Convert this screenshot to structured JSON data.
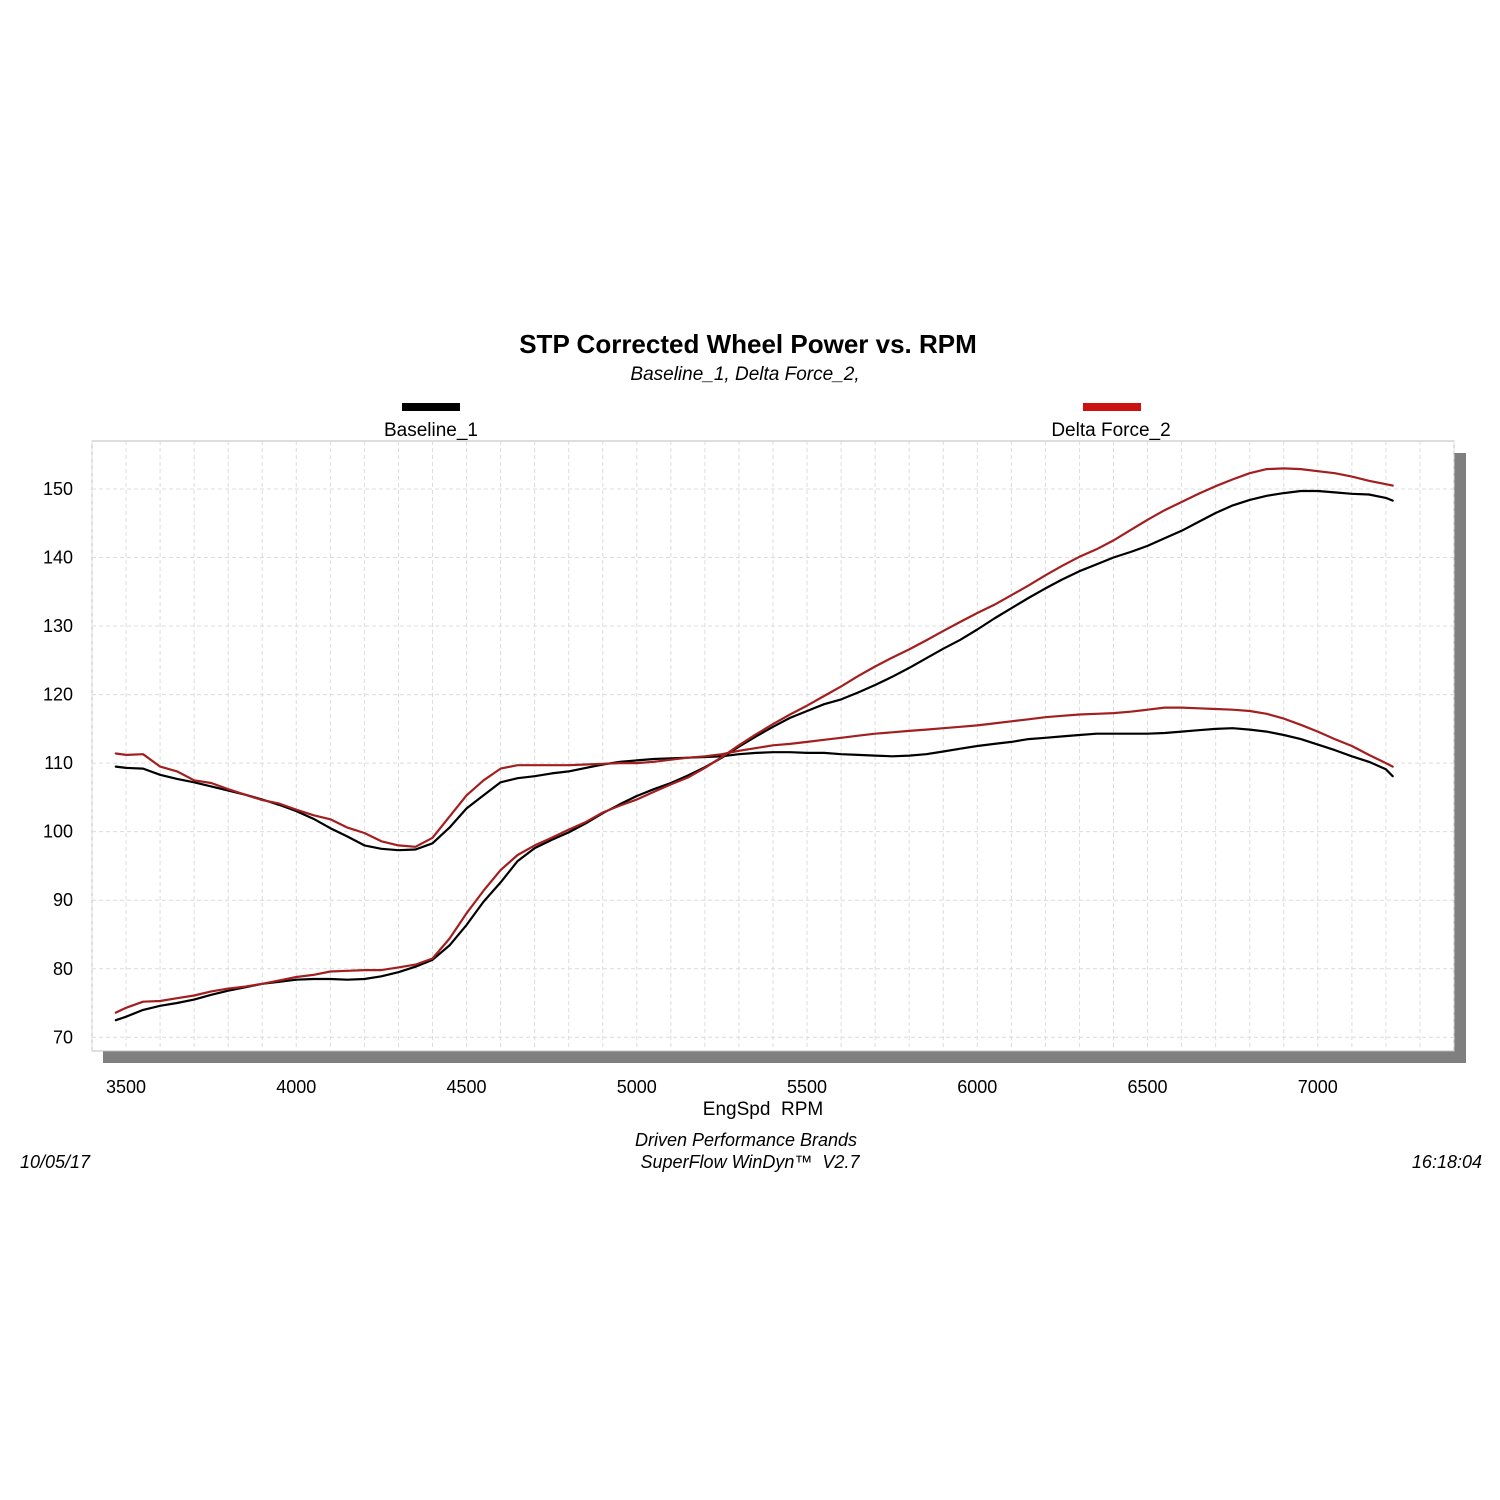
{
  "chart_data": {
    "type": "line",
    "title": "STP Corrected Wheel Power vs. RPM",
    "subtitle": "Baseline_1, Delta Force_2,",
    "xlabel": "EngSpd  RPM",
    "ylabel": "",
    "xlim": [
      3400,
      7400
    ],
    "ylim": [
      68,
      157
    ],
    "x_ticks": [
      3500,
      4000,
      4500,
      5000,
      5500,
      6000,
      6500,
      7000
    ],
    "y_ticks": [
      70,
      80,
      90,
      100,
      110,
      120,
      130,
      140,
      150
    ],
    "x_grid_step": 100,
    "grid": true,
    "legend_position": "top",
    "series": [
      {
        "name": "Baseline_1",
        "color": "#000000",
        "legend_color": "#000000",
        "curves": [
          {
            "x": [
              3470,
              3500,
              3550,
              3600,
              3650,
              3700,
              3750,
              3800,
              3850,
              3900,
              3950,
              4000,
              4050,
              4100,
              4150,
              4200,
              4250,
              4300,
              4350,
              4400,
              4450,
              4500,
              4550,
              4600,
              4650,
              4700,
              4750,
              4800,
              4850,
              4900,
              4950,
              5000,
              5050,
              5100,
              5150,
              5200,
              5250,
              5300,
              5350,
              5400,
              5450,
              5500,
              5550,
              5600,
              5650,
              5700,
              5750,
              5800,
              5850,
              5900,
              5950,
              6000,
              6050,
              6100,
              6150,
              6200,
              6250,
              6300,
              6350,
              6400,
              6450,
              6500,
              6550,
              6600,
              6650,
              6700,
              6750,
              6800,
              6850,
              6900,
              6950,
              7000,
              7050,
              7100,
              7150,
              7200,
              7220
            ],
            "y": [
              72.5,
              73.0,
              74.0,
              74.6,
              75.0,
              75.5,
              76.2,
              76.8,
              77.3,
              77.8,
              78.1,
              78.4,
              78.5,
              78.5,
              78.4,
              78.5,
              78.9,
              79.5,
              80.3,
              81.3,
              83.4,
              86.4,
              89.8,
              92.6,
              95.7,
              97.6,
              98.8,
              99.9,
              101.2,
              102.7,
              104.0,
              105.2,
              106.2,
              107.1,
              108.2,
              109.4,
              110.8,
              112.4,
              113.9,
              115.3,
              116.6,
              117.6,
              118.6,
              119.3,
              120.3,
              121.4,
              122.6,
              123.9,
              125.3,
              126.7,
              128.0,
              129.5,
              131.1,
              132.6,
              134.1,
              135.5,
              136.8,
              138.0,
              139.0,
              140.0,
              140.8,
              141.7,
              142.8,
              143.9,
              145.2,
              146.5,
              147.6,
              148.4,
              149.0,
              149.4,
              149.7,
              149.7,
              149.5,
              149.3,
              149.2,
              148.7,
              148.3
            ]
          },
          {
            "x": [
              3470,
              3500,
              3550,
              3600,
              3650,
              3700,
              3750,
              3800,
              3850,
              3900,
              3950,
              4000,
              4050,
              4100,
              4150,
              4200,
              4250,
              4300,
              4350,
              4400,
              4450,
              4500,
              4550,
              4600,
              4650,
              4700,
              4750,
              4800,
              4850,
              4900,
              4950,
              5000,
              5050,
              5100,
              5150,
              5200,
              5250,
              5300,
              5350,
              5400,
              5450,
              5500,
              5550,
              5600,
              5650,
              5700,
              5750,
              5800,
              5850,
              5900,
              5950,
              6000,
              6050,
              6100,
              6150,
              6200,
              6250,
              6300,
              6350,
              6400,
              6450,
              6500,
              6550,
              6600,
              6650,
              6700,
              6750,
              6800,
              6850,
              6900,
              6950,
              7000,
              7050,
              7100,
              7150,
              7200,
              7220
            ],
            "y": [
              109.5,
              109.3,
              109.2,
              108.3,
              107.7,
              107.2,
              106.6,
              106.0,
              105.4,
              104.7,
              103.9,
              103.0,
              101.9,
              100.5,
              99.3,
              98.0,
              97.5,
              97.3,
              97.4,
              98.3,
              100.6,
              103.4,
              105.3,
              107.2,
              107.8,
              108.1,
              108.5,
              108.8,
              109.3,
              109.8,
              110.2,
              110.4,
              110.6,
              110.7,
              110.8,
              110.9,
              111.0,
              111.3,
              111.5,
              111.6,
              111.6,
              111.5,
              111.5,
              111.3,
              111.2,
              111.1,
              111.0,
              111.1,
              111.3,
              111.7,
              112.1,
              112.5,
              112.8,
              113.1,
              113.5,
              113.7,
              113.9,
              114.1,
              114.3,
              114.3,
              114.3,
              114.3,
              114.4,
              114.6,
              114.8,
              115.0,
              115.1,
              114.9,
              114.6,
              114.1,
              113.5,
              112.7,
              111.9,
              111.0,
              110.2,
              109.1,
              108.1
            ]
          }
        ]
      },
      {
        "name": "Delta Force_2",
        "color": "#a31f1f",
        "legend_color": "#cc1111",
        "curves": [
          {
            "x": [
              3470,
              3500,
              3550,
              3600,
              3650,
              3700,
              3750,
              3800,
              3850,
              3900,
              3950,
              4000,
              4050,
              4100,
              4150,
              4200,
              4250,
              4300,
              4350,
              4400,
              4450,
              4500,
              4550,
              4600,
              4650,
              4700,
              4750,
              4800,
              4850,
              4900,
              4950,
              5000,
              5050,
              5100,
              5150,
              5200,
              5250,
              5300,
              5350,
              5400,
              5450,
              5500,
              5550,
              5600,
              5650,
              5700,
              5750,
              5800,
              5850,
              5900,
              5950,
              6000,
              6050,
              6100,
              6150,
              6200,
              6250,
              6300,
              6350,
              6400,
              6450,
              6500,
              6550,
              6600,
              6650,
              6700,
              6750,
              6800,
              6850,
              6900,
              6950,
              7000,
              7050,
              7100,
              7150,
              7200,
              7220
            ],
            "y": [
              73.6,
              74.3,
              75.2,
              75.3,
              75.7,
              76.1,
              76.7,
              77.1,
              77.4,
              77.8,
              78.3,
              78.8,
              79.1,
              79.6,
              79.7,
              79.8,
              79.8,
              80.2,
              80.6,
              81.5,
              84.4,
              88.1,
              91.4,
              94.4,
              96.6,
              98.0,
              99.1,
              100.3,
              101.4,
              102.8,
              103.8,
              104.7,
              105.8,
              106.9,
              107.9,
              109.3,
              110.9,
              112.6,
              114.2,
              115.7,
              117.1,
              118.4,
              119.8,
              121.2,
              122.7,
              124.1,
              125.4,
              126.6,
              127.9,
              129.3,
              130.6,
              131.9,
              133.1,
              134.5,
              135.9,
              137.4,
              138.8,
              140.1,
              141.2,
              142.5,
              144.0,
              145.5,
              146.9,
              148.1,
              149.3,
              150.4,
              151.4,
              152.3,
              152.9,
              153.0,
              152.9,
              152.6,
              152.3,
              151.8,
              151.2,
              150.7,
              150.5
            ]
          },
          {
            "x": [
              3470,
              3500,
              3550,
              3600,
              3650,
              3700,
              3750,
              3800,
              3850,
              3900,
              3950,
              4000,
              4050,
              4100,
              4150,
              4200,
              4250,
              4300,
              4350,
              4400,
              4450,
              4500,
              4550,
              4600,
              4650,
              4700,
              4750,
              4800,
              4850,
              4900,
              4950,
              5000,
              5050,
              5100,
              5150,
              5200,
              5250,
              5300,
              5350,
              5400,
              5450,
              5500,
              5550,
              5600,
              5650,
              5700,
              5750,
              5800,
              5850,
              5900,
              5950,
              6000,
              6050,
              6100,
              6150,
              6200,
              6250,
              6300,
              6350,
              6400,
              6450,
              6500,
              6550,
              6600,
              6650,
              6700,
              6750,
              6800,
              6850,
              6900,
              6950,
              7000,
              7050,
              7100,
              7150,
              7200,
              7220
            ],
            "y": [
              111.4,
              111.2,
              111.3,
              109.5,
              108.8,
              107.5,
              107.1,
              106.2,
              105.4,
              104.6,
              104.1,
              103.2,
              102.4,
              101.8,
              100.6,
              99.8,
              98.6,
              98.0,
              97.8,
              99.1,
              102.2,
              105.3,
              107.5,
              109.2,
              109.7,
              109.7,
              109.7,
              109.7,
              109.8,
              109.9,
              110.0,
              110.0,
              110.2,
              110.5,
              110.8,
              111.0,
              111.3,
              111.8,
              112.2,
              112.6,
              112.8,
              113.1,
              113.4,
              113.7,
              114.0,
              114.3,
              114.5,
              114.7,
              114.9,
              115.1,
              115.3,
              115.5,
              115.8,
              116.1,
              116.4,
              116.7,
              116.9,
              117.1,
              117.2,
              117.3,
              117.5,
              117.8,
              118.1,
              118.1,
              118.0,
              117.9,
              117.8,
              117.6,
              117.2,
              116.5,
              115.6,
              114.6,
              113.5,
              112.5,
              111.2,
              110.0,
              109.5
            ]
          }
        ]
      }
    ]
  },
  "footer": {
    "date": "10/05/17",
    "company": "Driven Performance Brands",
    "software": "SuperFlow WinDyn™  V2.7",
    "time": "16:18:04"
  }
}
